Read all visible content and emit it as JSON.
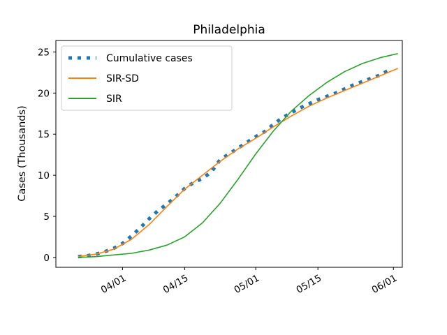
{
  "chart_data": {
    "type": "line",
    "title": "Philadelphia",
    "xlabel": "",
    "ylabel": "Cases (Thousands)",
    "x_axis_type": "date",
    "xlim": [
      "2020-03-17",
      "2020-06-03"
    ],
    "ylim": [
      -1.2,
      26.4
    ],
    "x_ticks": [
      {
        "date": "2020-04-01",
        "label": "04/01"
      },
      {
        "date": "2020-04-15",
        "label": "04/15"
      },
      {
        "date": "2020-05-01",
        "label": "05/01"
      },
      {
        "date": "2020-05-15",
        "label": "05/15"
      },
      {
        "date": "2020-06-01",
        "label": "06/01"
      }
    ],
    "y_ticks": [
      0,
      5,
      10,
      15,
      20,
      25
    ],
    "grid": false,
    "legend": "top-left",
    "colors": {
      "cumulative": "#1f77b4",
      "sir_sd": "#ff7f0e",
      "sir": "#2ca02c"
    },
    "series": [
      {
        "name": "Cumulative cases",
        "style": "dotted",
        "x": [
          "2020-03-22",
          "2020-03-24",
          "2020-03-26",
          "2020-03-28",
          "2020-03-30",
          "2020-04-01",
          "2020-04-03",
          "2020-04-05",
          "2020-04-07",
          "2020-04-09",
          "2020-04-11",
          "2020-04-13",
          "2020-04-15",
          "2020-04-17",
          "2020-04-19",
          "2020-04-21",
          "2020-04-23",
          "2020-04-25",
          "2020-04-27",
          "2020-04-29",
          "2020-05-01",
          "2020-05-03",
          "2020-05-05",
          "2020-05-07",
          "2020-05-09",
          "2020-05-11",
          "2020-05-13",
          "2020-05-15",
          "2020-05-17",
          "2020-05-19",
          "2020-05-21",
          "2020-05-23",
          "2020-05-25",
          "2020-05-27",
          "2020-05-29",
          "2020-05-31"
        ],
        "values": [
          0.1,
          0.2,
          0.4,
          0.7,
          1.1,
          1.7,
          2.6,
          3.6,
          4.7,
          5.7,
          6.5,
          7.4,
          8.4,
          9.1,
          9.6,
          10.4,
          11.9,
          12.6,
          13.3,
          14.0,
          14.7,
          15.3,
          16.2,
          17.0,
          17.6,
          18.2,
          18.7,
          19.2,
          19.6,
          20.0,
          20.5,
          21.0,
          21.4,
          21.8,
          22.2,
          22.8
        ]
      },
      {
        "name": "SIR-SD",
        "style": "solid",
        "x": [
          "2020-03-22",
          "2020-03-26",
          "2020-03-30",
          "2020-04-03",
          "2020-04-07",
          "2020-04-11",
          "2020-04-15",
          "2020-04-19",
          "2020-04-23",
          "2020-04-27",
          "2020-05-01",
          "2020-05-05",
          "2020-05-09",
          "2020-05-13",
          "2020-05-17",
          "2020-05-21",
          "2020-05-25",
          "2020-05-29",
          "2020-06-02"
        ],
        "values": [
          0.1,
          0.4,
          1.0,
          2.2,
          4.0,
          6.2,
          8.3,
          10.0,
          11.7,
          13.2,
          14.5,
          15.9,
          17.2,
          18.4,
          19.4,
          20.3,
          21.2,
          22.1,
          23.0
        ]
      },
      {
        "name": "SIR",
        "style": "solid",
        "x": [
          "2020-03-22",
          "2020-03-26",
          "2020-03-30",
          "2020-04-03",
          "2020-04-07",
          "2020-04-11",
          "2020-04-15",
          "2020-04-19",
          "2020-04-23",
          "2020-04-27",
          "2020-05-01",
          "2020-05-05",
          "2020-05-09",
          "2020-05-13",
          "2020-05-17",
          "2020-05-21",
          "2020-05-25",
          "2020-05-29",
          "2020-06-02"
        ],
        "values": [
          0.0,
          0.1,
          0.3,
          0.5,
          0.9,
          1.5,
          2.5,
          4.2,
          6.6,
          9.5,
          12.6,
          15.4,
          17.8,
          19.7,
          21.3,
          22.6,
          23.6,
          24.3,
          24.8
        ]
      }
    ]
  }
}
